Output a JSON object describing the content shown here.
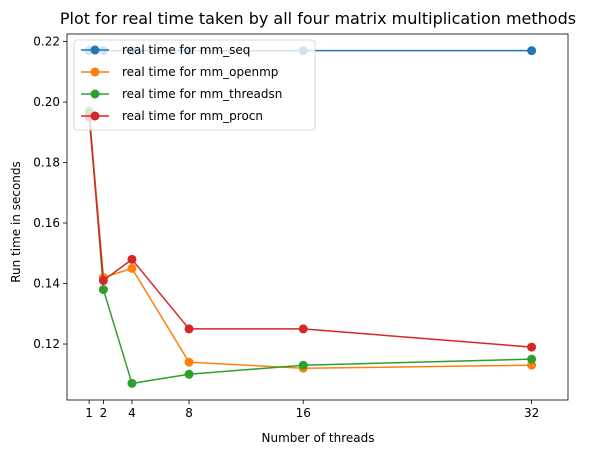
{
  "chart_data": {
    "type": "line",
    "title": "Plot for real time taken by all four matrix multiplication methods",
    "xlabel": "Number of threads",
    "ylabel": "Run time in seconds",
    "x": [
      1,
      2,
      4,
      8,
      16,
      32
    ],
    "xticks": [
      1,
      2,
      4,
      8,
      16,
      32
    ],
    "yticks": [
      0.12,
      0.14,
      0.16,
      0.18,
      0.2,
      0.22
    ],
    "xlim": [
      -0.55,
      34.55
    ],
    "ylim": [
      0.1015,
      0.2225
    ],
    "grid": false,
    "legend_position": "top-left",
    "series": [
      {
        "name": "real time for mm_seq",
        "color": "#1f77b4",
        "values": [
          0.217,
          0.217,
          0.217,
          0.217,
          0.217,
          0.217
        ]
      },
      {
        "name": "real time for mm_openmp",
        "color": "#ff7f0e",
        "values": [
          0.197,
          0.142,
          0.145,
          0.114,
          0.112,
          0.113
        ]
      },
      {
        "name": "real time for mm_threadsn",
        "color": "#2ca02c",
        "values": [
          0.197,
          0.138,
          0.107,
          0.11,
          0.113,
          0.115
        ]
      },
      {
        "name": "real time for mm_procn",
        "color": "#d62728",
        "values": [
          0.195,
          0.141,
          0.148,
          0.125,
          0.125,
          0.119
        ]
      }
    ]
  }
}
